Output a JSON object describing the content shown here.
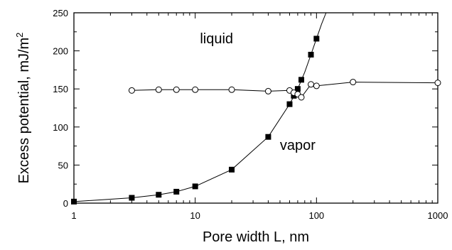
{
  "chart_data": {
    "type": "scatter",
    "xscale": "log",
    "xlim": [
      1,
      1000
    ],
    "ylim": [
      0,
      250
    ],
    "grid": false,
    "xlabel": "Pore width L, nm",
    "ylabel_main": "Excess potential, mJ/m",
    "ylabel_superscript": "2",
    "xtick_values": [
      1,
      10,
      100,
      1000
    ],
    "xtick_labels": [
      "1",
      "10",
      "100",
      "1000"
    ],
    "ytick_values": [
      0,
      50,
      100,
      150,
      200,
      250
    ],
    "ytick_labels": [
      "0",
      "50",
      "100",
      "150",
      "200",
      "250"
    ],
    "annotations": [
      {
        "text": "liquid",
        "x": 15,
        "y": 210
      },
      {
        "text": "vapor",
        "x": 70,
        "y": 70
      }
    ],
    "series": [
      {
        "marker": "filled-square",
        "color": "#000000",
        "x": [
          1,
          3,
          5,
          7,
          10,
          20,
          40,
          60,
          65,
          70,
          75,
          90,
          100
        ],
        "y": [
          2,
          7,
          11,
          15,
          22,
          44,
          87,
          130,
          141,
          150,
          162,
          195,
          216
        ],
        "curve_x": [
          1,
          3,
          5,
          7,
          10,
          20,
          40,
          60,
          70,
          80,
          90,
          100,
          110,
          120
        ],
        "curve_y": [
          2,
          7,
          11,
          15,
          22,
          44,
          87,
          130,
          150,
          172,
          195,
          216,
          235,
          250
        ]
      },
      {
        "marker": "open-circle",
        "color": "#000000",
        "x": [
          3,
          5,
          7,
          10,
          20,
          40,
          60,
          65,
          70,
          75,
          90,
          100,
          200,
          1000
        ],
        "y": [
          148,
          149,
          149,
          149,
          149,
          147,
          148,
          145,
          143,
          139,
          156,
          154,
          159,
          158
        ]
      }
    ]
  }
}
